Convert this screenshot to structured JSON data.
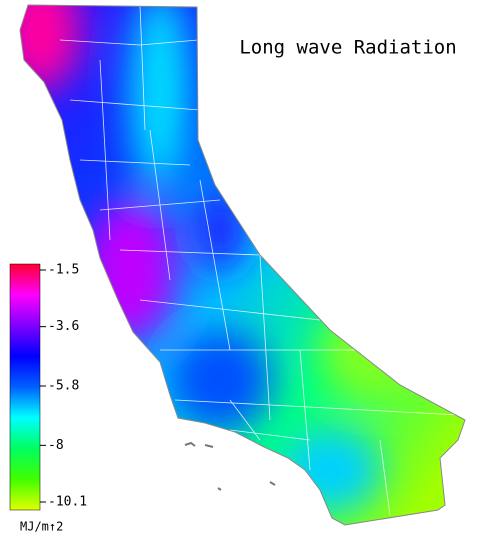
{
  "title": "Long wave Radiation",
  "colorbar": {
    "ticks": [
      -1.5,
      -3.6,
      -5.8,
      -8.0,
      -10.1
    ],
    "unit": "MJ/m↑2",
    "colors": [
      "#ff0030",
      "#ff00ff",
      "#8000ff",
      "#0000ff",
      "#0060ff",
      "#00ffff",
      "#00ff60",
      "#40ff00",
      "#e0ff00"
    ]
  }
}
